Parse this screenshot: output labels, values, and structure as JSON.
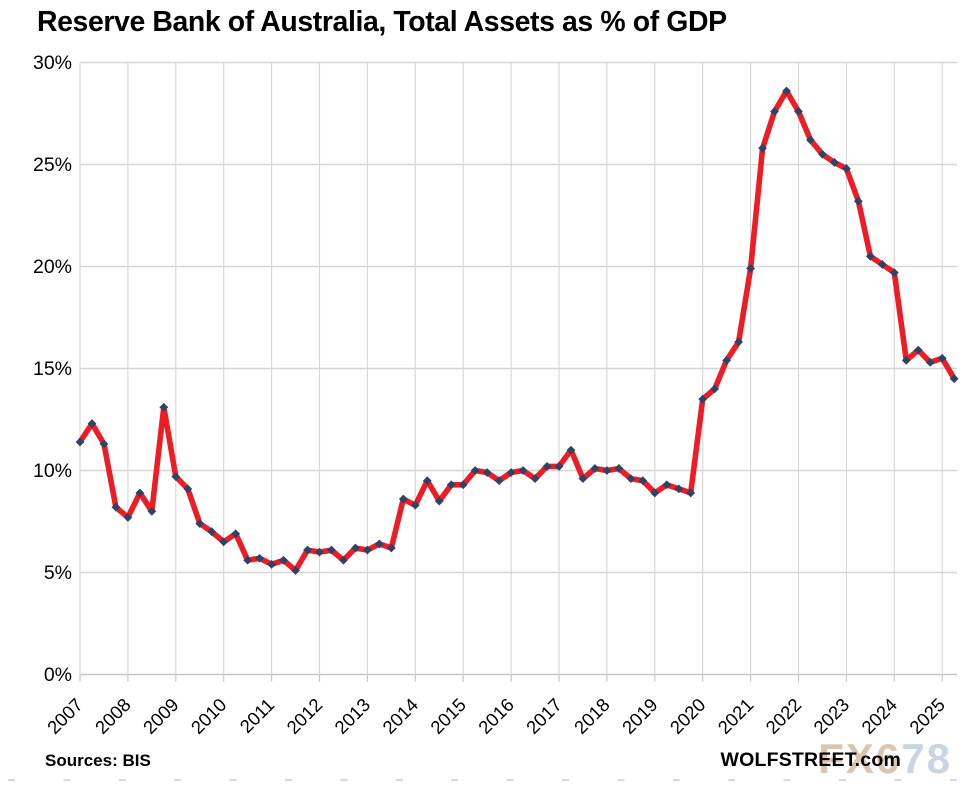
{
  "title": "Reserve Bank of Australia, Total Assets as % of GDP",
  "footer": {
    "source": "Sources: BIS",
    "brand": "WOLFSTREET.com"
  },
  "watermark": {
    "part1": "FX6",
    "part2": "78"
  },
  "colors": {
    "line": "#ee1c24",
    "marker": "#2f4366",
    "grid": "#d6d6d6",
    "axis": "#c6c6c6",
    "text": "#000000",
    "watermark_tan": "#dcc5af",
    "watermark_blue": "#c8d5e5",
    "bottom_dash": "#d9d9d9"
  },
  "chart_data": {
    "type": "line",
    "title": "Reserve Bank of Australia, Total Assets as % of GDP",
    "frequency": "quarterly",
    "x_start": "2007-Q1",
    "x_end": "2025-Q2",
    "x_tick_labels": [
      "2007",
      "2008",
      "2009",
      "2010",
      "2011",
      "2012",
      "2013",
      "2014",
      "2015",
      "2016",
      "2017",
      "2018",
      "2019",
      "2020",
      "2021",
      "2022",
      "2023",
      "2024",
      "2025"
    ],
    "y_tick_labels": [
      "0%",
      "5%",
      "10%",
      "15%",
      "20%",
      "25%",
      "30%"
    ],
    "ylim": [
      0,
      30
    ],
    "y_tick_step": 5,
    "grid": true,
    "legend": "none",
    "series": [
      {
        "name": "total_assets_pct_gdp",
        "values": [
          11.4,
          12.3,
          11.3,
          8.2,
          7.7,
          8.9,
          8.0,
          13.1,
          9.7,
          9.1,
          7.4,
          7.0,
          6.5,
          6.9,
          5.6,
          5.7,
          5.4,
          5.6,
          5.1,
          6.1,
          6.0,
          6.1,
          5.6,
          6.2,
          6.1,
          6.4,
          6.2,
          8.6,
          8.3,
          9.5,
          8.5,
          9.3,
          9.3,
          10.0,
          9.9,
          9.5,
          9.9,
          10.0,
          9.6,
          10.2,
          10.2,
          11.0,
          9.6,
          10.1,
          10.0,
          10.1,
          9.6,
          9.5,
          8.9,
          9.3,
          9.1,
          8.9,
          13.5,
          14.0,
          15.4,
          16.3,
          19.9,
          25.8,
          27.6,
          28.6,
          27.6,
          26.2,
          25.5,
          25.1,
          24.8,
          23.2,
          20.5,
          20.1,
          19.7,
          15.4,
          15.9,
          15.3,
          15.5,
          14.5
        ]
      }
    ]
  }
}
